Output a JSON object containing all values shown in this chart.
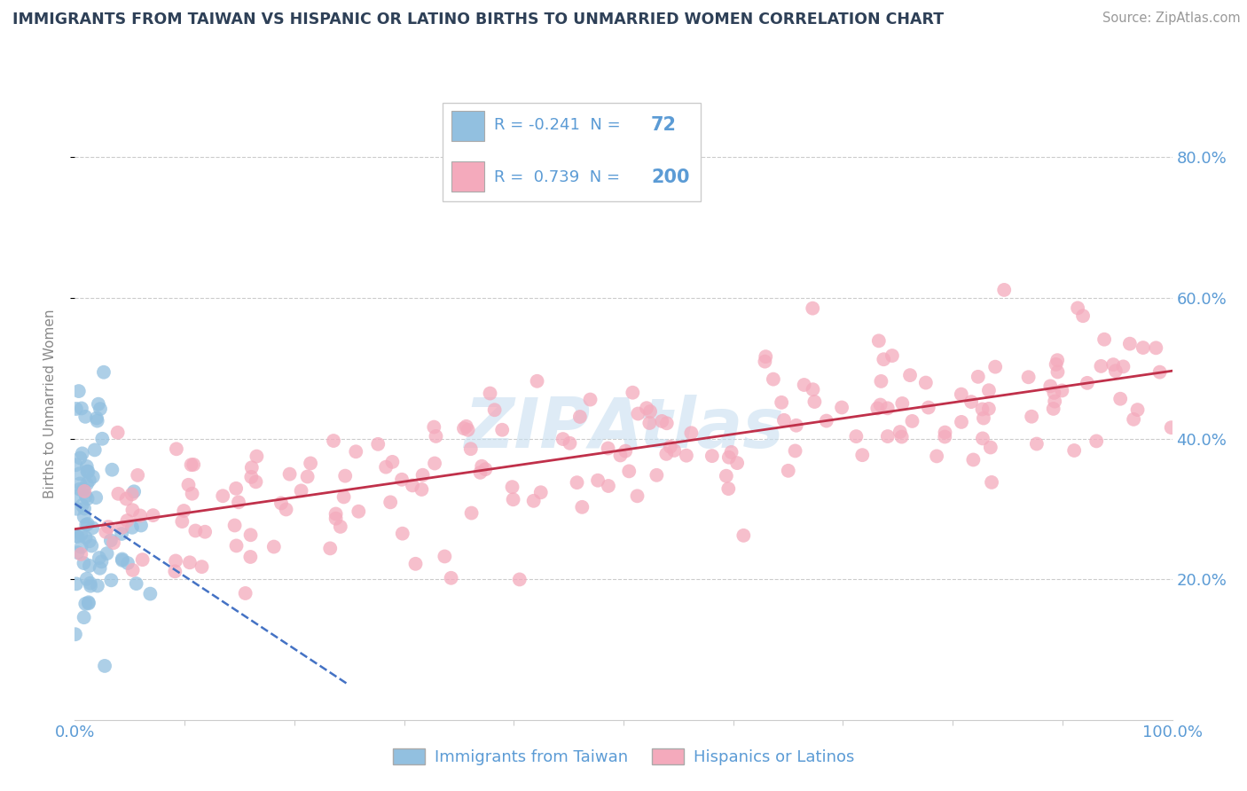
{
  "title": "IMMIGRANTS FROM TAIWAN VS HISPANIC OR LATINO BIRTHS TO UNMARRIED WOMEN CORRELATION CHART",
  "source": "Source: ZipAtlas.com",
  "ylabel": "Births to Unmarried Women",
  "xlim": [
    0.0,
    1.0
  ],
  "ylim": [
    0.0,
    0.9
  ],
  "y_tick_positions": [
    0.2,
    0.4,
    0.6,
    0.8
  ],
  "y_tick_labels": [
    "20.0%",
    "40.0%",
    "60.0%",
    "80.0%"
  ],
  "x_tick_positions": [
    0.0,
    1.0
  ],
  "x_tick_labels": [
    "0.0%",
    "100.0%"
  ],
  "blue_R": -0.241,
  "blue_N": 72,
  "pink_R": 0.739,
  "pink_N": 200,
  "blue_color": "#92C0E0",
  "pink_color": "#F4AABC",
  "blue_line_color": "#4472C4",
  "pink_line_color": "#C0304A",
  "background_color": "#FFFFFF",
  "grid_color": "#CCCCCC",
  "title_color": "#2E4057",
  "axis_label_color": "#5B9BD5",
  "text_dark": "#333333",
  "legend_border_color": "#CCCCCC",
  "watermark_color": "#C8DFF0",
  "legend_label_blue": "Immigrants from Taiwan",
  "legend_label_pink": "Hispanics or Latinos"
}
